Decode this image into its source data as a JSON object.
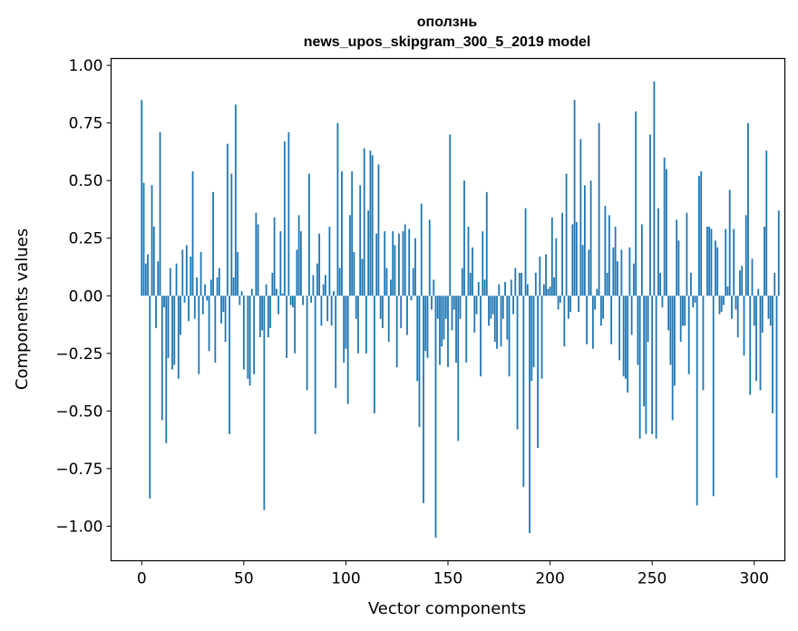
{
  "chart_data": {
    "type": "bar",
    "title_line1": "оползнь",
    "title_line2": "news_upos_skipgram_300_5_2019 model",
    "xlabel": "Vector components",
    "ylabel": "Components values",
    "xlim": [
      -15,
      315
    ],
    "ylim": [
      -1.15,
      1.03
    ],
    "xticks": [
      0,
      50,
      100,
      150,
      200,
      250,
      300
    ],
    "xtick_labels": [
      "0",
      "50",
      "100",
      "150",
      "200",
      "250",
      "300"
    ],
    "yticks": [
      1.0,
      0.75,
      0.5,
      0.25,
      0.0,
      -0.25,
      -0.5,
      -0.75,
      -1.0
    ],
    "ytick_labels": [
      "1.00",
      "0.75",
      "0.50",
      "0.25",
      "0.00",
      "−0.25",
      "−0.50",
      "−0.75",
      "−1.00"
    ],
    "bar_color": "#1f77b4",
    "bar_width": 0.8,
    "values": [
      0.85,
      0.49,
      0.14,
      0.18,
      -0.88,
      0.48,
      0.3,
      -0.14,
      0.15,
      0.71,
      -0.54,
      -0.05,
      -0.64,
      -0.27,
      0.12,
      -0.32,
      -0.3,
      0.14,
      -0.36,
      -0.17,
      0.2,
      -0.03,
      0.22,
      -0.11,
      0.17,
      0.54,
      -0.1,
      0.08,
      -0.34,
      0.19,
      -0.08,
      0.05,
      -0.02,
      -0.24,
      0.07,
      0.45,
      -0.29,
      0.08,
      0.12,
      -0.12,
      -0.07,
      -0.2,
      0.66,
      -0.6,
      0.53,
      0.08,
      0.83,
      0.19,
      -0.04,
      0.02,
      -0.32,
      0.0,
      -0.36,
      -0.39,
      0.03,
      -0.34,
      0.36,
      0.31,
      -0.18,
      -0.15,
      -0.93,
      0.05,
      -0.18,
      -0.14,
      0.1,
      0.34,
      0.03,
      -0.08,
      0.28,
      0.01,
      0.67,
      -0.27,
      0.71,
      -0.04,
      -0.05,
      -0.25,
      0.2,
      0.35,
      0.28,
      -0.04,
      0.0,
      -0.41,
      0.53,
      -0.03,
      0.09,
      -0.6,
      0.14,
      0.27,
      -0.13,
      0.05,
      0.09,
      -0.11,
      0.3,
      -0.13,
      0.02,
      -0.4,
      0.75,
      0.12,
      0.54,
      -0.29,
      -0.23,
      -0.47,
      0.35,
      0.54,
      0.19,
      -0.1,
      -0.25,
      0.48,
      0.16,
      0.64,
      -0.25,
      0.37,
      0.63,
      0.61,
      -0.51,
      0.27,
      0.57,
      -0.1,
      -0.14,
      0.28,
      0.12,
      -0.2,
      0.07,
      0.28,
      0.22,
      -0.31,
      0.27,
      -0.14,
      0.28,
      0.31,
      -0.17,
      0.29,
      -0.02,
      0.12,
      0.25,
      -0.37,
      -0.57,
      0.4,
      -0.9,
      -0.24,
      -0.27,
      0.33,
      -0.06,
      0.07,
      -1.05,
      -0.1,
      -0.3,
      -0.22,
      -0.19,
      -0.1,
      -0.31,
      0.7,
      -0.15,
      -0.06,
      -0.29,
      -0.63,
      -0.1,
      0.12,
      0.5,
      -0.29,
      0.3,
      0.1,
      0.21,
      -0.16,
      -0.08,
      0.06,
      -0.35,
      0.28,
      0.07,
      0.45,
      -0.13,
      -0.1,
      -0.08,
      -0.2,
      -0.23,
      0.05,
      -0.22,
      -0.1,
      0.06,
      -0.19,
      -0.35,
      0.07,
      -0.08,
      0.12,
      -0.58,
      0.1,
      0.1,
      -0.83,
      0.38,
      0.05,
      -1.03,
      -0.37,
      -0.31,
      0.1,
      -0.66,
      0.17,
      -0.36,
      0.05,
      0.18,
      0.03,
      0.04,
      0.34,
      0.08,
      0.25,
      -0.06,
      -0.03,
      0.36,
      -0.22,
      0.53,
      -0.1,
      -0.07,
      0.31,
      0.85,
      0.32,
      -0.07,
      0.68,
      0.22,
      0.48,
      -0.21,
      0.2,
      0.5,
      -0.23,
      -0.06,
      0.03,
      0.75,
      -0.13,
      -0.1,
      0.39,
      0.1,
      0.35,
      -0.21,
      0.21,
      0.3,
      0.15,
      -0.28,
      0.2,
      -0.35,
      -0.36,
      -0.42,
      0.21,
      -0.17,
      0.14,
      0.8,
      -0.3,
      -0.62,
      0.31,
      -0.48,
      -0.6,
      -0.2,
      0.7,
      -0.6,
      0.93,
      -0.62,
      0.38,
      0.1,
      -0.05,
      0.6,
      0.55,
      -0.15,
      -0.3,
      -0.54,
      -0.39,
      0.33,
      0.24,
      -0.2,
      -0.13,
      -0.13,
      0.36,
      -0.34,
      0.1,
      -0.05,
      -0.03,
      -0.91,
      0.52,
      0.54,
      -0.41,
      0.0,
      0.3,
      0.3,
      0.29,
      -0.87,
      0.24,
      0.21,
      -0.08,
      -0.07,
      -0.04,
      0.29,
      0.04,
      0.46,
      -0.1,
      0.29,
      -0.06,
      -0.18,
      0.11,
      0.13,
      -0.26,
      0.35,
      0.75,
      -0.43,
      0.16,
      -0.13,
      -0.37,
      0.03,
      -0.41,
      -0.16,
      0.3,
      0.63,
      -0.1,
      -0.13,
      -0.51,
      0.1,
      -0.79,
      0.37
    ]
  }
}
